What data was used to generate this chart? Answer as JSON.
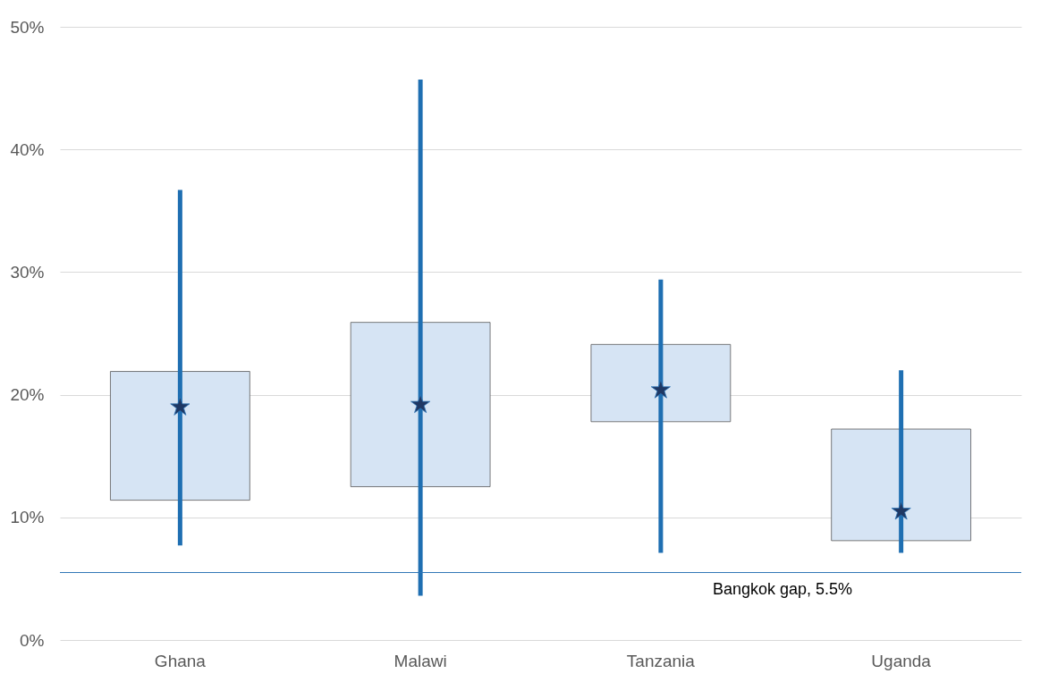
{
  "chart_data": {
    "type": "box",
    "categories": [
      "Ghana",
      "Malawi",
      "Tanzania",
      "Uganda"
    ],
    "boxes": [
      {
        "low": 7.7,
        "q1": 11.4,
        "median": 19.0,
        "q3": 21.9,
        "high": 36.7
      },
      {
        "low": 3.6,
        "q1": 12.5,
        "median": 19.2,
        "q3": 25.9,
        "high": 45.7
      },
      {
        "low": 7.1,
        "q1": 17.8,
        "median": 20.4,
        "q3": 24.1,
        "high": 29.4
      },
      {
        "low": 7.1,
        "q1": 8.1,
        "median": 10.5,
        "q3": 17.2,
        "high": 22.0
      }
    ],
    "color": "#d6e4f4",
    "marker": "star",
    "grid": "y",
    "ylim": [
      0,
      50
    ],
    "yticks": [
      {
        "value": 0,
        "label": "0%"
      },
      {
        "value": 10,
        "label": "10%"
      },
      {
        "value": 20,
        "label": "20%"
      },
      {
        "value": 30,
        "label": "30%"
      },
      {
        "value": 40,
        "label": "40%"
      },
      {
        "value": 50,
        "label": "50%"
      }
    ],
    "ref_lines": [
      {
        "axis": "y",
        "value": 5.5,
        "label": "Bangkok gap, 5.5%",
        "color": "#2e75b6"
      }
    ]
  }
}
